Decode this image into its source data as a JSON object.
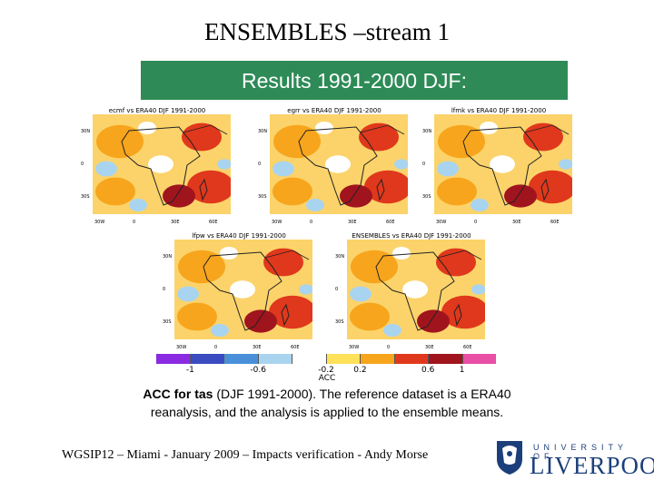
{
  "slide": {
    "title": "ENSEMBLES –stream 1",
    "banner": "Results 1991-2000 DJF:",
    "footer": "WGSIP12 – Miami - January 2009 – Impacts verification - Andy Morse"
  },
  "panels": [
    {
      "title": "ecmf vs ERA40 DJF 1991-2000"
    },
    {
      "title": "egrr vs ERA40 DJF 1991-2000"
    },
    {
      "title": "lfmk vs ERA40 DJF 1991-2000"
    },
    {
      "title": "lfpw vs ERA40 DJF 1991-2000"
    },
    {
      "title": "ENSEMBLES vs ERA40 DJF 1991-2000"
    }
  ],
  "axes": {
    "lat_labels": [
      "30N",
      "0",
      "30S"
    ],
    "lon_labels": [
      "30W",
      "0",
      "30E",
      "60E"
    ]
  },
  "colorbar": {
    "label": "ACC",
    "ticks": [
      "-1",
      "-0.6",
      "-0.2",
      "0.2",
      "0.6",
      "1"
    ],
    "colors": [
      "#8a2be2",
      "#3b4cc0",
      "#4a90d9",
      "#a9d4f0",
      "#ffffff",
      "#ffe15a",
      "#f7a51c",
      "#e0381c",
      "#a0141e",
      "#e84fa5"
    ]
  },
  "caption": {
    "bold": "ACC for tas",
    "line1_rest": " (DJF 1991-2000). The reference dataset is a ERA40",
    "line2": "reanalysis, and the analysis is applied to the ensemble means."
  },
  "logo": {
    "university": "UNIVERSITY OF",
    "city": "LIVERPOOL"
  }
}
